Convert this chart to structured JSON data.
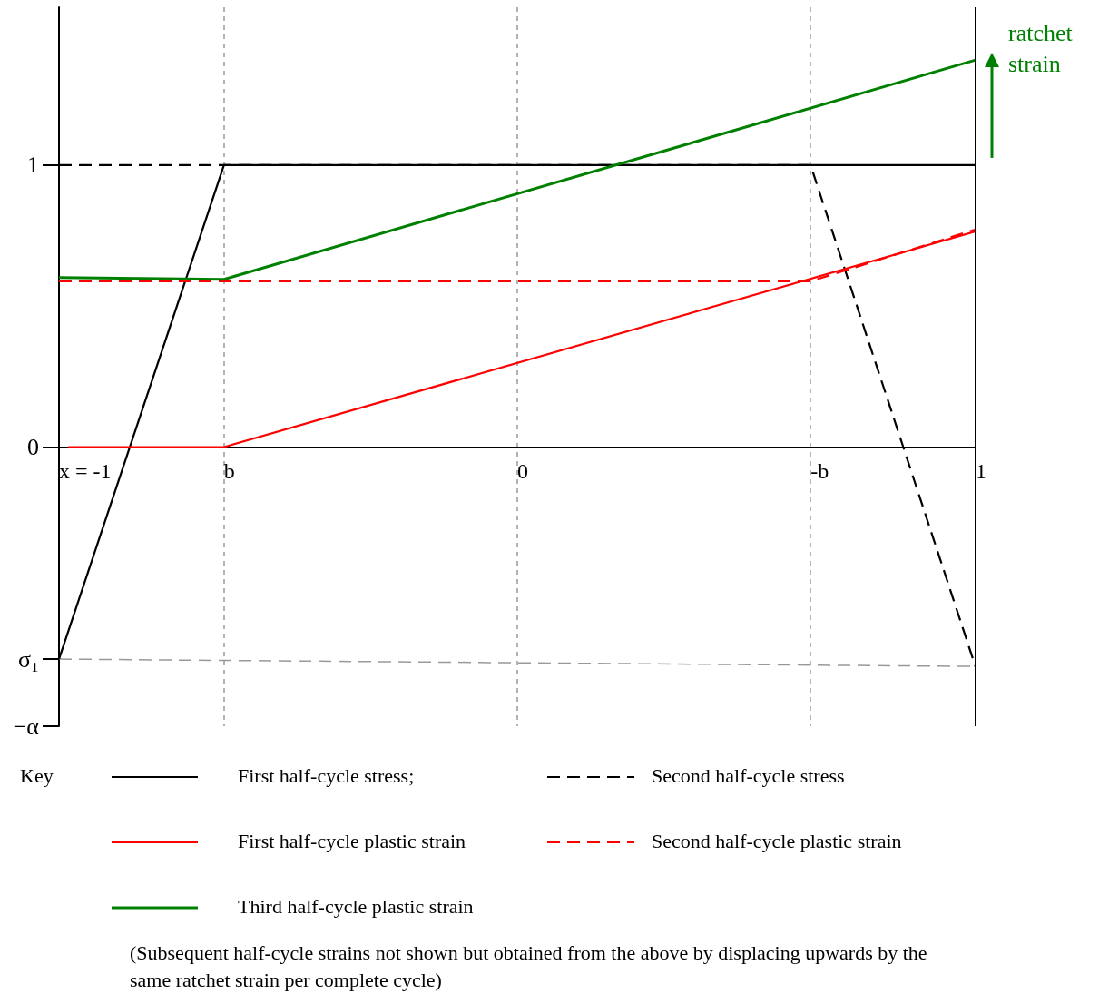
{
  "chart_data": {
    "type": "line",
    "legend_title": "Key",
    "legend": "bottom",
    "grid": "x",
    "marker": "none",
    "xlim": [
      -1,
      1
    ],
    "ylim": [
      -0.99,
      1.56
    ],
    "xticks": [
      {
        "value": -1,
        "label": "x = -1"
      },
      {
        "value": -0.64,
        "label": "b"
      },
      0,
      {
        "value": 0.64,
        "label": "-b"
      },
      1
    ],
    "yticks": [
      {
        "value": -0.99,
        "label": "−α"
      },
      {
        "value": -0.752,
        "label": "σ₁"
      },
      0,
      1
    ],
    "ref_lines": [
      {
        "axis": "x",
        "value": 1,
        "color": "#000000"
      }
    ],
    "annotations": [
      {
        "text": "ratchet strain",
        "x": 1,
        "y": 1.2
      },
      "(Subsequent half-cycle strains not shown but obtained from the above by displacing upwards by the same ratchet strain per complete cycle)"
    ],
    "series": [
      {
        "name": "First half-cycle stress;",
        "color": "#000000",
        "x": [
          -1,
          -0.64,
          1
        ],
        "values": [
          -0.752,
          1,
          1
        ]
      },
      {
        "name": "Second half-cycle stress",
        "color": "#000000",
        "line_style": "dashed",
        "x": [
          -1,
          0.64,
          1
        ],
        "values": [
          1,
          1,
          -0.78
        ]
      },
      {
        "name": "First half-cycle plastic strain",
        "color": "#ff0000",
        "x": [
          -0.98,
          -0.64,
          1
        ],
        "values": [
          0,
          0,
          0.765
        ]
      },
      {
        "name": "Second half-cycle plastic strain",
        "color": "#ff0000",
        "line_style": "dashed",
        "x": [
          -1,
          0.64,
          1
        ],
        "values": [
          0.588,
          0.588,
          0.772
        ]
      },
      {
        "name": "Third half-cycle plastic strain",
        "color": "#008000",
        "x": [
          -1,
          -0.64,
          1
        ],
        "values": [
          0.601,
          0.595,
          1.373
        ]
      },
      {
        "color": "#999999",
        "line_style": "dashed",
        "x": [
          -1,
          1
        ],
        "values": [
          -0.752,
          -0.778
        ]
      }
    ]
  }
}
